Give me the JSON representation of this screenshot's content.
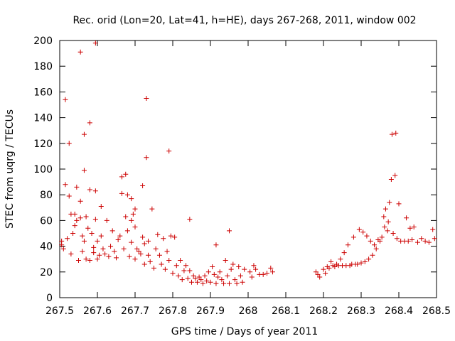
{
  "chart_data": {
    "type": "scatter",
    "title": "Rec. orid (Lon=20, Lat=41, h=HE), days 267-268, 2011, window 002",
    "xlabel": "GPS time / Days of year 2011",
    "ylabel": "STEC from uqrg / TECUs",
    "xlim": [
      267.5,
      268.5
    ],
    "ylim": [
      0,
      200
    ],
    "xticks": [
      "267.5",
      "267.6",
      "267.7",
      "267.8",
      "267.9",
      "268",
      "268.1",
      "268.2",
      "268.3",
      "268.4",
      "268.5"
    ],
    "yticks": [
      "0",
      "20",
      "40",
      "60",
      "80",
      "100",
      "120",
      "140",
      "160",
      "180",
      "200"
    ],
    "grid": false,
    "marker": "plus",
    "color": "#cc0000",
    "points": [
      [
        267.505,
        44
      ],
      [
        267.505,
        41
      ],
      [
        267.51,
        38
      ],
      [
        267.515,
        154
      ],
      [
        267.515,
        88
      ],
      [
        267.52,
        46
      ],
      [
        267.525,
        120
      ],
      [
        267.525,
        79
      ],
      [
        267.53,
        65
      ],
      [
        267.53,
        34
      ],
      [
        267.535,
        50
      ],
      [
        267.54,
        65
      ],
      [
        267.54,
        56
      ],
      [
        267.545,
        86
      ],
      [
        267.545,
        60
      ],
      [
        267.55,
        29
      ],
      [
        267.555,
        191
      ],
      [
        267.555,
        75
      ],
      [
        267.555,
        62
      ],
      [
        267.56,
        48
      ],
      [
        267.56,
        36
      ],
      [
        267.565,
        127
      ],
      [
        267.565,
        99
      ],
      [
        267.565,
        44
      ],
      [
        267.57,
        63
      ],
      [
        267.57,
        30
      ],
      [
        267.575,
        54
      ],
      [
        267.58,
        136
      ],
      [
        267.58,
        84
      ],
      [
        267.58,
        29
      ],
      [
        267.585,
        50
      ],
      [
        267.59,
        39
      ],
      [
        267.59,
        35
      ],
      [
        267.595,
        198
      ],
      [
        267.595,
        83
      ],
      [
        267.595,
        61
      ],
      [
        267.6,
        30
      ],
      [
        267.6,
        44
      ],
      [
        267.605,
        33
      ],
      [
        267.61,
        71
      ],
      [
        267.61,
        48
      ],
      [
        267.615,
        38
      ],
      [
        267.62,
        34
      ],
      [
        267.625,
        60
      ],
      [
        267.63,
        32
      ],
      [
        267.635,
        40
      ],
      [
        267.64,
        52
      ],
      [
        267.645,
        36
      ],
      [
        267.65,
        31
      ],
      [
        267.655,
        45
      ],
      [
        267.66,
        48
      ],
      [
        267.665,
        94
      ],
      [
        267.665,
        81
      ],
      [
        267.67,
        38
      ],
      [
        267.675,
        96
      ],
      [
        267.675,
        63
      ],
      [
        267.68,
        80
      ],
      [
        267.68,
        52
      ],
      [
        267.685,
        32
      ],
      [
        267.69,
        77
      ],
      [
        267.69,
        60
      ],
      [
        267.69,
        43
      ],
      [
        267.695,
        65
      ],
      [
        267.7,
        69
      ],
      [
        267.7,
        55
      ],
      [
        267.7,
        30
      ],
      [
        267.705,
        38
      ],
      [
        267.71,
        36
      ],
      [
        267.715,
        34
      ],
      [
        267.72,
        87
      ],
      [
        267.72,
        47
      ],
      [
        267.725,
        42
      ],
      [
        267.725,
        26
      ],
      [
        267.73,
        155
      ],
      [
        267.73,
        109
      ],
      [
        267.735,
        44
      ],
      [
        267.735,
        33
      ],
      [
        267.74,
        28
      ],
      [
        267.745,
        69
      ],
      [
        267.75,
        23
      ],
      [
        267.755,
        38
      ],
      [
        267.76,
        49
      ],
      [
        267.765,
        33
      ],
      [
        267.77,
        26
      ],
      [
        267.775,
        46
      ],
      [
        267.78,
        22
      ],
      [
        267.785,
        36
      ],
      [
        267.79,
        114
      ],
      [
        267.79,
        29
      ],
      [
        267.795,
        48
      ],
      [
        267.8,
        19
      ],
      [
        267.805,
        47
      ],
      [
        267.81,
        25
      ],
      [
        267.815,
        17
      ],
      [
        267.82,
        29
      ],
      [
        267.825,
        14
      ],
      [
        267.83,
        21
      ],
      [
        267.835,
        25
      ],
      [
        267.84,
        15
      ],
      [
        267.845,
        61
      ],
      [
        267.845,
        21
      ],
      [
        267.85,
        12
      ],
      [
        267.855,
        17
      ],
      [
        267.86,
        15
      ],
      [
        267.865,
        12
      ],
      [
        267.87,
        16
      ],
      [
        267.875,
        14
      ],
      [
        267.88,
        11
      ],
      [
        267.885,
        17
      ],
      [
        267.89,
        13
      ],
      [
        267.895,
        20
      ],
      [
        267.9,
        12
      ],
      [
        267.905,
        24
      ],
      [
        267.91,
        18
      ],
      [
        267.915,
        41
      ],
      [
        267.915,
        11
      ],
      [
        267.92,
        16
      ],
      [
        267.925,
        20
      ],
      [
        267.93,
        14
      ],
      [
        267.935,
        11
      ],
      [
        267.94,
        29
      ],
      [
        267.945,
        17
      ],
      [
        267.95,
        52
      ],
      [
        267.95,
        11
      ],
      [
        267.955,
        22
      ],
      [
        267.96,
        26
      ],
      [
        267.965,
        14
      ],
      [
        267.97,
        11
      ],
      [
        267.975,
        24
      ],
      [
        267.98,
        17
      ],
      [
        267.985,
        12
      ],
      [
        267.99,
        22
      ],
      [
        268.005,
        20
      ],
      [
        268.01,
        16
      ],
      [
        268.015,
        25
      ],
      [
        268.02,
        22
      ],
      [
        268.03,
        18
      ],
      [
        268.04,
        18
      ],
      [
        268.05,
        19
      ],
      [
        268.06,
        23
      ],
      [
        268.065,
        20
      ],
      [
        268.18,
        20
      ],
      [
        268.185,
        18
      ],
      [
        268.19,
        16
      ],
      [
        268.2,
        22
      ],
      [
        268.205,
        19
      ],
      [
        268.21,
        24
      ],
      [
        268.215,
        23
      ],
      [
        268.22,
        28
      ],
      [
        268.225,
        25
      ],
      [
        268.23,
        24
      ],
      [
        268.235,
        26
      ],
      [
        268.24,
        25
      ],
      [
        268.245,
        30
      ],
      [
        268.25,
        25
      ],
      [
        268.255,
        35
      ],
      [
        268.26,
        25
      ],
      [
        268.265,
        41
      ],
      [
        268.27,
        25
      ],
      [
        268.275,
        26
      ],
      [
        268.28,
        47
      ],
      [
        268.285,
        26
      ],
      [
        268.29,
        26
      ],
      [
        268.295,
        53
      ],
      [
        268.3,
        27
      ],
      [
        268.305,
        51
      ],
      [
        268.31,
        28
      ],
      [
        268.315,
        48
      ],
      [
        268.32,
        30
      ],
      [
        268.325,
        44
      ],
      [
        268.33,
        33
      ],
      [
        268.335,
        41
      ],
      [
        268.34,
        38
      ],
      [
        268.345,
        45
      ],
      [
        268.35,
        44
      ],
      [
        268.355,
        47
      ],
      [
        268.36,
        63
      ],
      [
        268.362,
        55
      ],
      [
        268.365,
        69
      ],
      [
        268.37,
        52
      ],
      [
        268.372,
        59
      ],
      [
        268.375,
        74
      ],
      [
        268.38,
        92
      ],
      [
        268.382,
        127
      ],
      [
        268.385,
        50
      ],
      [
        268.39,
        95
      ],
      [
        268.392,
        128
      ],
      [
        268.395,
        46
      ],
      [
        268.4,
        73
      ],
      [
        268.405,
        44
      ],
      [
        268.415,
        44
      ],
      [
        268.42,
        62
      ],
      [
        268.425,
        44
      ],
      [
        268.43,
        54
      ],
      [
        268.435,
        45
      ],
      [
        268.44,
        55
      ],
      [
        268.45,
        43
      ],
      [
        268.46,
        46
      ],
      [
        268.47,
        44
      ],
      [
        268.48,
        43
      ],
      [
        268.49,
        53
      ],
      [
        268.495,
        46
      ]
    ]
  }
}
